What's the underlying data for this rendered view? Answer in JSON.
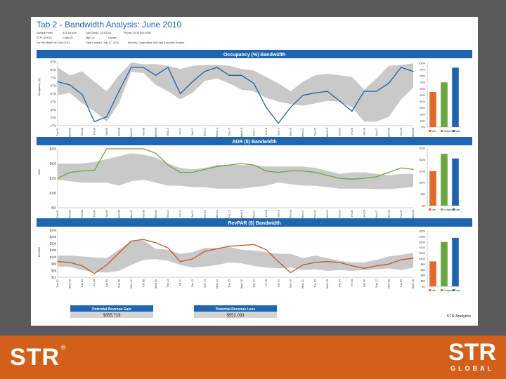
{
  "report": {
    "title": "Tab 2 - Bandwidth Analysis: June 2010",
    "info_rows": [
      [
        "Sample Hotel",
        "515 1st Ave",
        "San Diego, CA 92101",
        "Phone: (619) 000-0000"
      ],
      [
        "STR: #XXXX",
        "Chain ID:",
        "Mgt Co:",
        "Owner:"
      ],
      [
        "For the Month of: June 2010",
        "Date Created: July 17, 2010",
        "Monthly Competitive Set Data Excludes Subject",
        ""
      ]
    ],
    "footer_note": "STR Analytics",
    "revenue_gain": {
      "label": "Potential Revenue Gain",
      "value": "$355,719"
    },
    "revenue_loss": {
      "label": "Potential Revenue Loss",
      "value": "$552,093"
    }
  },
  "logos": {
    "left": "STR",
    "left_mark": "®",
    "right": "STR",
    "right_sub": "GLOBAL"
  },
  "colors": {
    "banner": "#1f66b0",
    "band": "#c9c9c9",
    "occ_line": "#1f5fa4",
    "adr_line": "#6aa53f",
    "rev_line": "#c8541f",
    "bar_min": "#e06a2b",
    "bar_subject": "#6aa53f",
    "bar_max": "#1f62ad"
  },
  "chart_data": [
    {
      "type": "area",
      "title": "Occupancy (%) Bandwidth",
      "ylabel": "Occupancy (%)",
      "ytick_labels": [
        "97%",
        "87%",
        "77%",
        "67%",
        "57%",
        "47%",
        "37%",
        "27%",
        "17%"
      ],
      "ylim": [
        17,
        97
      ],
      "x": [
        "Tue 01",
        "Wed 02",
        "Thu 03",
        "Fri 04",
        "Sat 05",
        "Sun 06",
        "Mon 07",
        "Tue 08",
        "Wed 09",
        "Thu 10",
        "Fri 11",
        "Sat 12",
        "Sun 13",
        "Mon 14",
        "Tue 15",
        "Wed 16",
        "Thu 17",
        "Fri 18",
        "Sat 19",
        "Sun 20",
        "Mon 21",
        "Tue 22",
        "Wed 23",
        "Thu 24",
        "Fri 25",
        "Sat 26",
        "Sun 27",
        "Mon 28",
        "Tue 29",
        "Wed 30"
      ],
      "band_low": [
        55,
        58,
        45,
        35,
        22,
        45,
        84,
        83,
        68,
        60,
        50,
        58,
        73,
        76,
        70,
        62,
        60,
        52,
        47,
        44,
        42,
        45,
        48,
        47,
        40,
        22,
        22,
        28,
        50,
        65
      ],
      "band_high": [
        90,
        80,
        85,
        72,
        60,
        80,
        96,
        94,
        94,
        92,
        88,
        92,
        93,
        93,
        92,
        88,
        86,
        78,
        70,
        60,
        72,
        80,
        82,
        80,
        78,
        62,
        76,
        92,
        93,
        95
      ],
      "series": [
        {
          "values": [
            72,
            68,
            56,
            22,
            28,
            60,
            90,
            90,
            80,
            90,
            57,
            72,
            85,
            90,
            80,
            80,
            70,
            40,
            20,
            40,
            55,
            58,
            60,
            48,
            35,
            60,
            60,
            70,
            90,
            85
          ]
        }
      ],
      "bar_chart": {
        "categories": [
          "Min",
          "Subject",
          "Max"
        ],
        "values": [
          55,
          70,
          93
        ],
        "ytick_labels": [
          "100%",
          "90%",
          "80%",
          "70%",
          "60%",
          "50%",
          "40%",
          "30%",
          "20%",
          "10%",
          "0%"
        ],
        "ylim": [
          0,
          100
        ]
      }
    },
    {
      "type": "area",
      "title": "ADR ($) Bandwidth",
      "ylabel": "ADR",
      "ytick_labels": [
        "$255",
        "$205",
        "$155",
        "$105",
        "$55"
      ],
      "ylim": [
        55,
        255
      ],
      "x": [
        "Tue 01",
        "Wed 02",
        "Thu 03",
        "Fri 04",
        "Sat 05",
        "Sun 06",
        "Mon 07",
        "Tue 08",
        "Wed 09",
        "Thu 10",
        "Fri 11",
        "Sat 12",
        "Sun 13",
        "Mon 14",
        "Tue 15",
        "Wed 16",
        "Thu 17",
        "Fri 18",
        "Sat 19",
        "Sun 20",
        "Mon 21",
        "Tue 22",
        "Wed 23",
        "Thu 24",
        "Fri 25",
        "Sat 26",
        "Sun 27",
        "Mon 28",
        "Tue 29",
        "Wed 30"
      ],
      "band_low": [
        150,
        145,
        140,
        140,
        140,
        130,
        145,
        150,
        140,
        130,
        130,
        125,
        125,
        120,
        120,
        120,
        125,
        130,
        140,
        135,
        130,
        130,
        125,
        120,
        120,
        120,
        118,
        118,
        122,
        125
      ],
      "band_high": [
        205,
        205,
        205,
        210,
        220,
        230,
        240,
        235,
        225,
        205,
        190,
        185,
        190,
        200,
        200,
        200,
        200,
        195,
        195,
        195,
        195,
        190,
        180,
        170,
        175,
        175,
        170,
        165,
        170,
        170
      ],
      "series": [
        {
          "values": [
            155,
            175,
            180,
            182,
            260,
            260,
            260,
            262,
            240,
            200,
            175,
            175,
            185,
            195,
            200,
            205,
            200,
            180,
            175,
            180,
            180,
            175,
            165,
            155,
            152,
            155,
            160,
            175,
            190,
            185
          ]
        }
      ],
      "bar_chart": {
        "categories": [
          "Min",
          "Subject",
          "Max"
        ],
        "values": [
          150,
          225,
          205
        ],
        "ytick_labels": [
          "$250",
          "$200",
          "$150",
          "$100",
          "$50",
          "$0"
        ],
        "ylim": [
          0,
          250
        ]
      }
    },
    {
      "type": "area",
      "title": "RevPAR ($) Bandwidth",
      "ylabel": "RevPAR",
      "ytick_labels": [
        "$289",
        "$249",
        "$209",
        "$169",
        "$129",
        "$89",
        "$49",
        "$13"
      ],
      "ylim": [
        13,
        289
      ],
      "x": [
        "Tue 01",
        "Wed 02",
        "Thu 03",
        "Fri 04",
        "Sat 05",
        "Sun 06",
        "Mon 07",
        "Tue 08",
        "Wed 09",
        "Thu 10",
        "Fri 11",
        "Sat 12",
        "Sun 13",
        "Mon 14",
        "Tue 15",
        "Wed 16",
        "Thu 17",
        "Fri 18",
        "Sat 19",
        "Sun 20",
        "Mon 21",
        "Tue 22",
        "Wed 23",
        "Thu 24",
        "Fri 25",
        "Sat 26",
        "Sun 27",
        "Mon 28",
        "Tue 29",
        "Wed 30"
      ],
      "band_low": [
        75,
        75,
        55,
        45,
        40,
        50,
        85,
        115,
        120,
        110,
        85,
        70,
        75,
        85,
        100,
        95,
        80,
        70,
        65,
        70,
        55,
        60,
        50,
        55,
        50,
        55,
        60,
        65,
        55,
        70
      ],
      "band_high": [
        140,
        140,
        135,
        130,
        125,
        175,
        225,
        230,
        180,
        175,
        150,
        160,
        185,
        185,
        190,
        175,
        170,
        160,
        150,
        150,
        125,
        140,
        125,
        110,
        100,
        100,
        115,
        135,
        145,
        155
      ],
      "series": [
        {
          "values": [
            105,
            100,
            80,
            35,
            85,
            155,
            225,
            235,
            215,
            185,
            105,
            120,
            165,
            180,
            195,
            200,
            205,
            175,
            105,
            40,
            85,
            100,
            105,
            100,
            80,
            65,
            80,
            90,
            115,
            125
          ]
        }
      ],
      "bar_chart": {
        "categories": [
          "Min",
          "Subject",
          "Max"
        ],
        "values": [
          90,
          160,
          175
        ],
        "ytick_labels": [
          "$200",
          "$180",
          "$160",
          "$140",
          "$120",
          "$100",
          "$80",
          "$60",
          "$40",
          "$20",
          "$0"
        ],
        "ylim": [
          0,
          200
        ]
      }
    }
  ]
}
